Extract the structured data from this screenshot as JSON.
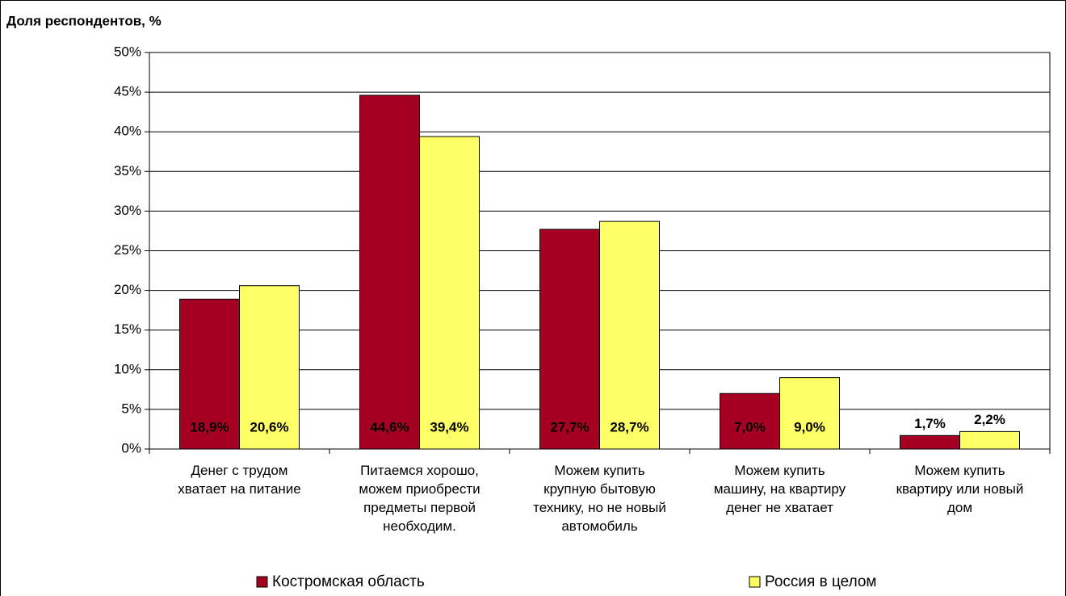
{
  "chart_data": {
    "type": "bar",
    "ylabel": "Доля респондентов, %",
    "categories": [
      "Денег с трудом\nхватает на питание",
      "Питаемся хорошо,\nможем приобрести\nпредметы первой\nнеобходим.",
      "Можем купить\nкрупную бытовую\nтехнику, но не новый\nавтомобиль",
      "Можем купить\nмашину, на квартиру\nденег не хватает",
      "Можем купить\nквартиру или новый\nдом"
    ],
    "series": [
      {
        "name": "Костромская область",
        "color": "#a50021",
        "values": [
          18.9,
          44.6,
          27.7,
          7.0,
          1.7
        ],
        "value_labels": [
          "18,9%",
          "44,6%",
          "27,7%",
          "7,0%",
          "1,7%"
        ]
      },
      {
        "name": "Россия в целом",
        "color": "#ffff66",
        "values": [
          20.6,
          39.4,
          28.7,
          9.0,
          2.2
        ],
        "value_labels": [
          "20,6%",
          "39,4%",
          "28,7%",
          "9,0%",
          "2,2%"
        ]
      }
    ],
    "ylim": [
      0,
      50
    ],
    "yticks": [
      {
        "value": 0,
        "label": "0%"
      },
      {
        "value": 5,
        "label": "5%"
      },
      {
        "value": 10,
        "label": "10%"
      },
      {
        "value": 15,
        "label": "15%"
      },
      {
        "value": 20,
        "label": "20%"
      },
      {
        "value": 25,
        "label": "25%"
      },
      {
        "value": 30,
        "label": "30%"
      },
      {
        "value": 35,
        "label": "35%"
      },
      {
        "value": 40,
        "label": "40%"
      },
      {
        "value": 45,
        "label": "45%"
      },
      {
        "value": 50,
        "label": "50%"
      }
    ],
    "grid": true
  }
}
